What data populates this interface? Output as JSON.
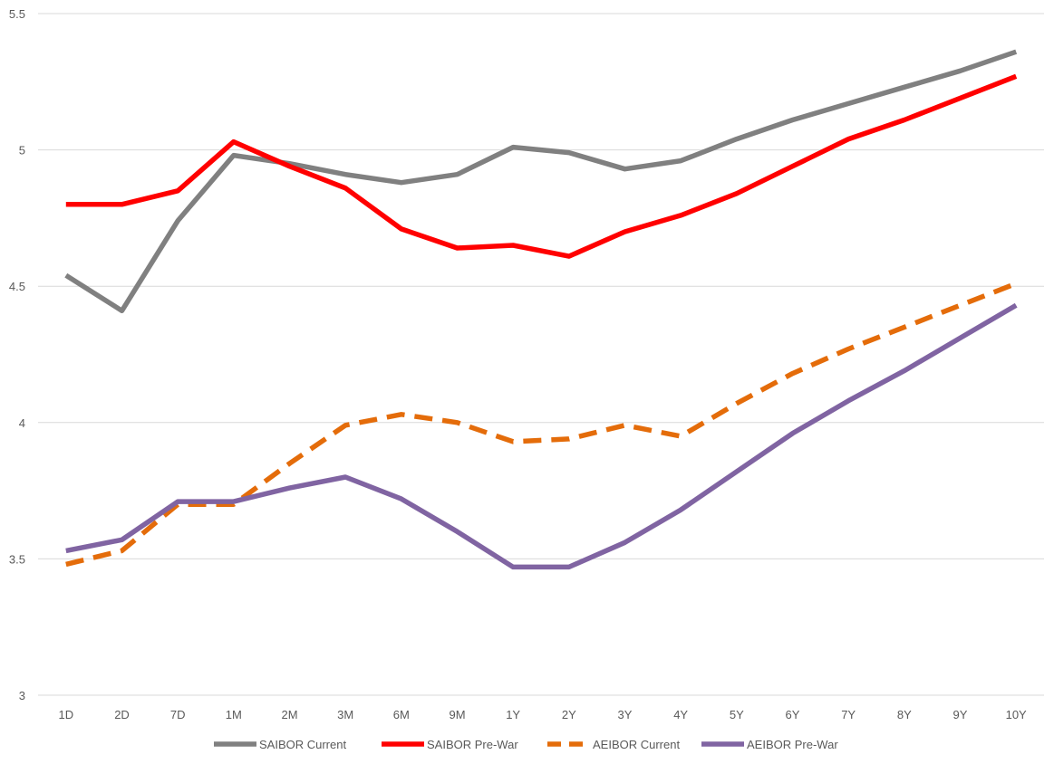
{
  "chart_data": {
    "type": "line",
    "title": "",
    "xlabel": "",
    "ylabel": "",
    "ylim": [
      3,
      5.5
    ],
    "yticks": [
      "3",
      "3.5",
      "4",
      "4.5",
      "5",
      "5.5"
    ],
    "ytick_values": [
      3,
      3.5,
      4,
      4.5,
      5,
      5.5
    ],
    "grid": true,
    "legend_position": "bottom",
    "categories": [
      "1D",
      "2D",
      "7D",
      "1M",
      "2M",
      "3M",
      "6M",
      "9M",
      "1Y",
      "2Y",
      "3Y",
      "4Y",
      "5Y",
      "6Y",
      "7Y",
      "8Y",
      "9Y",
      "10Y"
    ],
    "series": [
      {
        "name": "SAIBOR Current",
        "color": "#808080",
        "dash": "solid",
        "values": [
          4.54,
          4.41,
          4.74,
          4.98,
          4.95,
          4.91,
          4.88,
          4.91,
          5.01,
          4.99,
          4.93,
          4.96,
          5.04,
          5.11,
          5.17,
          5.23,
          5.29,
          5.36
        ]
      },
      {
        "name": "SAIBOR  Pre-War",
        "color": "#ff0000",
        "dash": "solid",
        "values": [
          4.8,
          4.8,
          4.85,
          5.03,
          4.94,
          4.86,
          4.71,
          4.64,
          4.65,
          4.61,
          4.7,
          4.76,
          4.84,
          4.94,
          5.04,
          5.11,
          5.19,
          5.27
        ]
      },
      {
        "name": "AEIBOR Current",
        "color": "#e46c0a",
        "dash": "dashed",
        "values": [
          3.48,
          3.53,
          3.7,
          3.7,
          3.85,
          3.99,
          4.03,
          4.0,
          3.93,
          3.94,
          3.99,
          3.95,
          4.07,
          4.18,
          4.27,
          4.35,
          4.43,
          4.51
        ]
      },
      {
        "name": "AEIBOR Pre-War",
        "color": "#8064a2",
        "dash": "solid",
        "values": [
          3.53,
          3.57,
          3.71,
          3.71,
          3.76,
          3.8,
          3.72,
          3.6,
          3.47,
          3.47,
          3.56,
          3.68,
          3.82,
          3.96,
          4.08,
          4.19,
          4.31,
          4.43
        ]
      }
    ]
  }
}
